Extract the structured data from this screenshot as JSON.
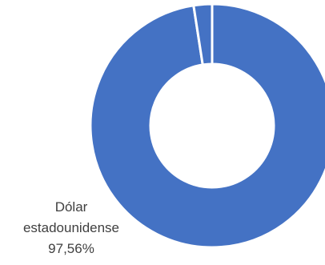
{
  "chart_data": {
    "type": "pie",
    "variant": "doughnut",
    "title": "",
    "legend": "none",
    "slices": [
      {
        "label": "Dólar estadounidense",
        "value": 97.56,
        "value_label": "97,56%",
        "color": "#4472C4",
        "label_lines": [
          "Dólar",
          "estadounidense"
        ]
      },
      {
        "label": "",
        "value": 2.44,
        "value_label": "",
        "color": "#4472C4",
        "label_lines": []
      }
    ],
    "separator_color": "#ffffff"
  }
}
